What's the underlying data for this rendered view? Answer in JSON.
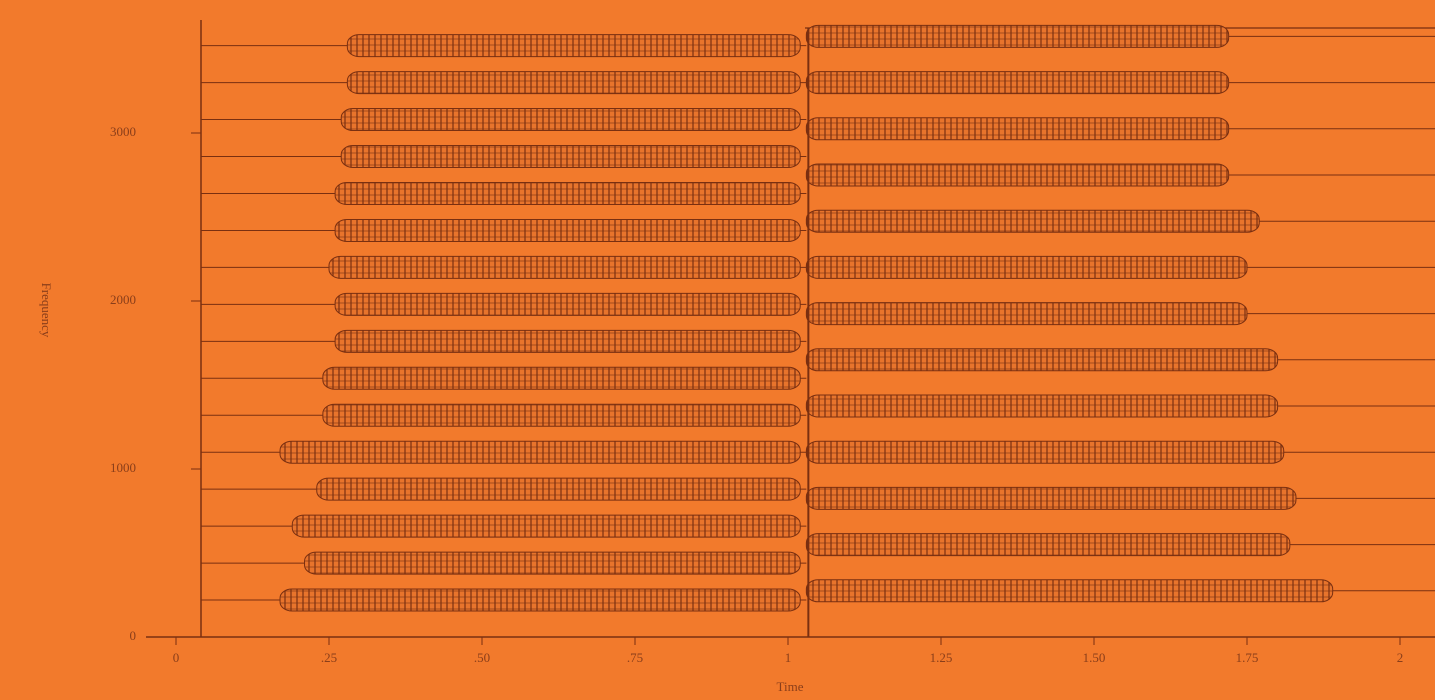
{
  "chart_data": {
    "type": "partials",
    "x_label": "Time",
    "y_label": "Frequency",
    "xlim": [
      0,
      2.05
    ],
    "ylim": [
      0,
      3750
    ],
    "xticks": [
      0,
      {
        "value": 0.25,
        "label": ".25"
      },
      {
        "value": 0.5,
        "label": ".50"
      },
      {
        "value": 0.75,
        "label": ".75"
      },
      1,
      1.25,
      {
        "value": 1.5,
        "label": "1.50"
      },
      1.75,
      2
    ],
    "yticks": [
      0,
      1000,
      2000,
      3000
    ],
    "color": "#7a2f10",
    "series": [
      {
        "x_start": [
          0.17,
          0.21,
          0.19,
          0.23,
          0.17,
          0.24,
          0.24,
          0.26,
          0.26,
          0.25,
          0.26,
          0.26,
          0.27,
          0.27,
          0.28,
          0.28
        ],
        "x_end": [
          1.02,
          1.02,
          1.02,
          1.02,
          1.02,
          1.02,
          1.02,
          1.02,
          1.02,
          1.02,
          1.02,
          1.02,
          1.02,
          1.02,
          1.02,
          1.02
        ],
        "values": [
          220,
          440,
          660,
          880,
          1100,
          1320,
          1540,
          1760,
          1980,
          2200,
          2420,
          2640,
          2860,
          3080,
          3300,
          3520
        ]
      },
      {
        "x_start": [
          1.03,
          1.03,
          1.03,
          1.03,
          1.03,
          1.03,
          1.03,
          1.03,
          1.03,
          1.03,
          1.03,
          1.03,
          1.03
        ],
        "x_end": [
          1.89,
          1.82,
          1.83,
          1.81,
          1.8,
          1.8,
          1.75,
          1.75,
          1.77,
          1.72,
          1.72,
          1.72,
          1.72
        ],
        "values": [
          275,
          550,
          825,
          1100,
          1375,
          1650,
          1925,
          2200,
          2475,
          2750,
          3025,
          3300,
          3575
        ]
      }
    ]
  }
}
